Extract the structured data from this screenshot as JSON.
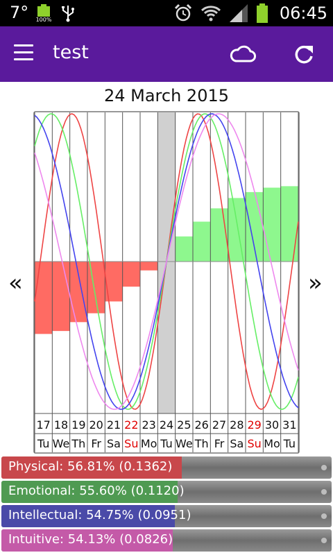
{
  "status_bar": {
    "temperature": "7°",
    "battery_small_label": "100%",
    "time": "06:45",
    "icons": [
      "battery-small-icon",
      "usb-icon",
      "alarm-icon",
      "wifi-icon",
      "signal-icon",
      "battery-icon"
    ]
  },
  "app_bar": {
    "title": "test",
    "color": "#5a1a9c",
    "icons": [
      "menu-icon",
      "cloud-icon",
      "refresh-icon"
    ]
  },
  "date_title": "24 March 2015",
  "nav": {
    "prev": "«",
    "next": "»"
  },
  "chart_data": {
    "type": "biorhythm",
    "selected_index": 7,
    "days": [
      {
        "num": "17",
        "wd": "Tu",
        "sunday": false
      },
      {
        "num": "18",
        "wd": "We",
        "sunday": false
      },
      {
        "num": "19",
        "wd": "Th",
        "sunday": false
      },
      {
        "num": "20",
        "wd": "Fr",
        "sunday": false
      },
      {
        "num": "21",
        "wd": "Sa",
        "sunday": false
      },
      {
        "num": "22",
        "wd": "Su",
        "sunday": true
      },
      {
        "num": "23",
        "wd": "Mo",
        "sunday": false
      },
      {
        "num": "24",
        "wd": "Tu",
        "sunday": false
      },
      {
        "num": "25",
        "wd": "We",
        "sunday": false
      },
      {
        "num": "26",
        "wd": "Th",
        "sunday": false
      },
      {
        "num": "27",
        "wd": "Fr",
        "sunday": false
      },
      {
        "num": "28",
        "wd": "Sa",
        "sunday": false
      },
      {
        "num": "29",
        "wd": "Su",
        "sunday": true
      },
      {
        "num": "30",
        "wd": "Mo",
        "sunday": false
      },
      {
        "num": "31",
        "wd": "Tu",
        "sunday": false
      }
    ],
    "daily_values": [
      -0.49,
      -0.47,
      -0.41,
      -0.35,
      -0.27,
      -0.17,
      -0.06,
      0.0,
      0.17,
      0.27,
      0.36,
      0.43,
      0.47,
      0.5,
      0.51
    ],
    "ylim": [
      -1,
      1
    ],
    "series": [
      {
        "name": "Physical",
        "color": "#ee4444",
        "period": 23,
        "value": 0.1362
      },
      {
        "name": "Emotional",
        "color": "#66ee66",
        "period": 28,
        "value": 0.112
      },
      {
        "name": "Intellectual",
        "color": "#4444ee",
        "period": 33,
        "value": 0.0951
      },
      {
        "name": "Intuitive",
        "color": "#ee88ee",
        "period": 38,
        "value": 0.0826
      }
    ],
    "colors": {
      "negative_bar": "#ff6b63",
      "positive_bar": "#8ef78e",
      "selected_column": "#d0d0d0",
      "sunday_text": "#e00000"
    }
  },
  "bars": [
    {
      "label": "Physical: 56.81% (0.1362)",
      "percent": 56.81,
      "color": "#c8474b"
    },
    {
      "label": "Emotional: 55.60% (0.1120)",
      "percent": 55.6,
      "color": "#4f9a52"
    },
    {
      "label": "Intellectual: 54.75% (0.0951)",
      "percent": 54.75,
      "color": "#4a4aa8"
    },
    {
      "label": "Intuitive: 54.13% (0.0826)",
      "percent": 54.13,
      "color": "#c45aa8"
    }
  ]
}
